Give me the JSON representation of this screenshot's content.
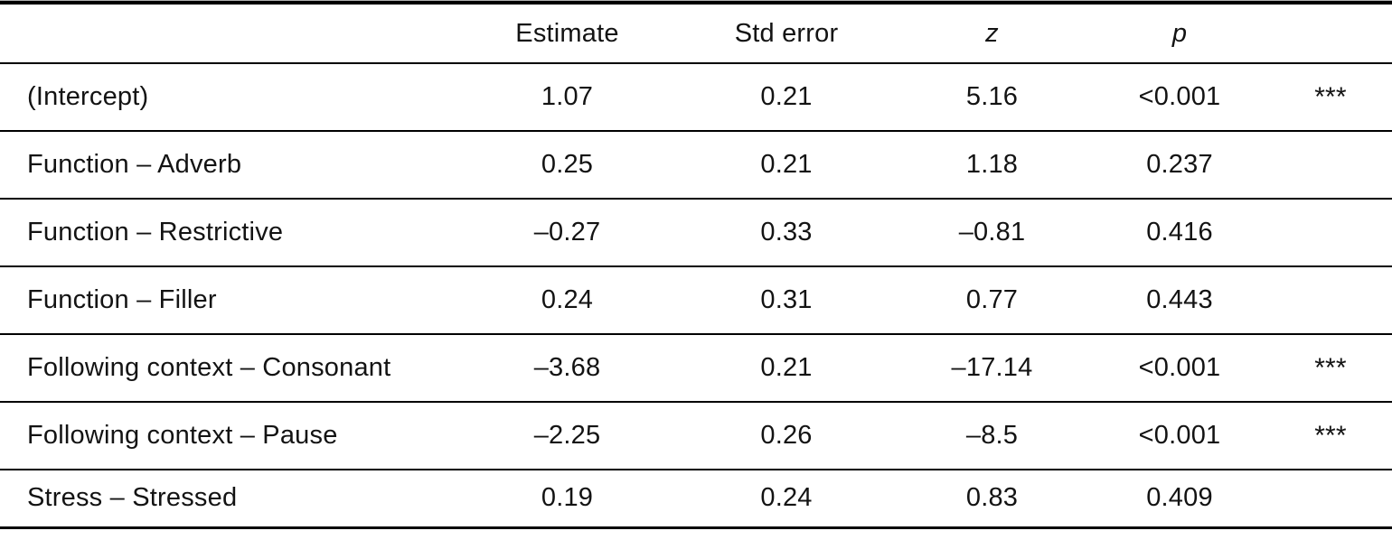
{
  "table": {
    "header": {
      "label": "",
      "estimate": "Estimate",
      "std_error": "Std error",
      "z": "z",
      "p": "p"
    },
    "rows": [
      {
        "label": "(Intercept)",
        "estimate": "1.07",
        "std_error": "0.21",
        "z": "5.16",
        "p": "<0.001",
        "sig": "***"
      },
      {
        "label": "Function – Adverb",
        "estimate": "0.25",
        "std_error": "0.21",
        "z": "1.18",
        "p": "0.237",
        "sig": ""
      },
      {
        "label": "Function – Restrictive",
        "estimate": "–0.27",
        "std_error": "0.33",
        "z": "–0.81",
        "p": "0.416",
        "sig": ""
      },
      {
        "label": "Function – Filler",
        "estimate": "0.24",
        "std_error": "0.31",
        "z": "0.77",
        "p": "0.443",
        "sig": ""
      },
      {
        "label": "Following context – Consonant",
        "estimate": "–3.68",
        "std_error": "0.21",
        "z": "–17.14",
        "p": "<0.001",
        "sig": "***"
      },
      {
        "label": "Following context – Pause",
        "estimate": "–2.25",
        "std_error": "0.26",
        "z": "–8.5",
        "p": "<0.001",
        "sig": "***"
      },
      {
        "label": "Stress – Stressed",
        "estimate": "0.19",
        "std_error": "0.24",
        "z": "0.83",
        "p": "0.409",
        "sig": ""
      }
    ],
    "colors": {
      "text": "#131313",
      "rule": "#000000",
      "background": "#ffffff"
    }
  }
}
